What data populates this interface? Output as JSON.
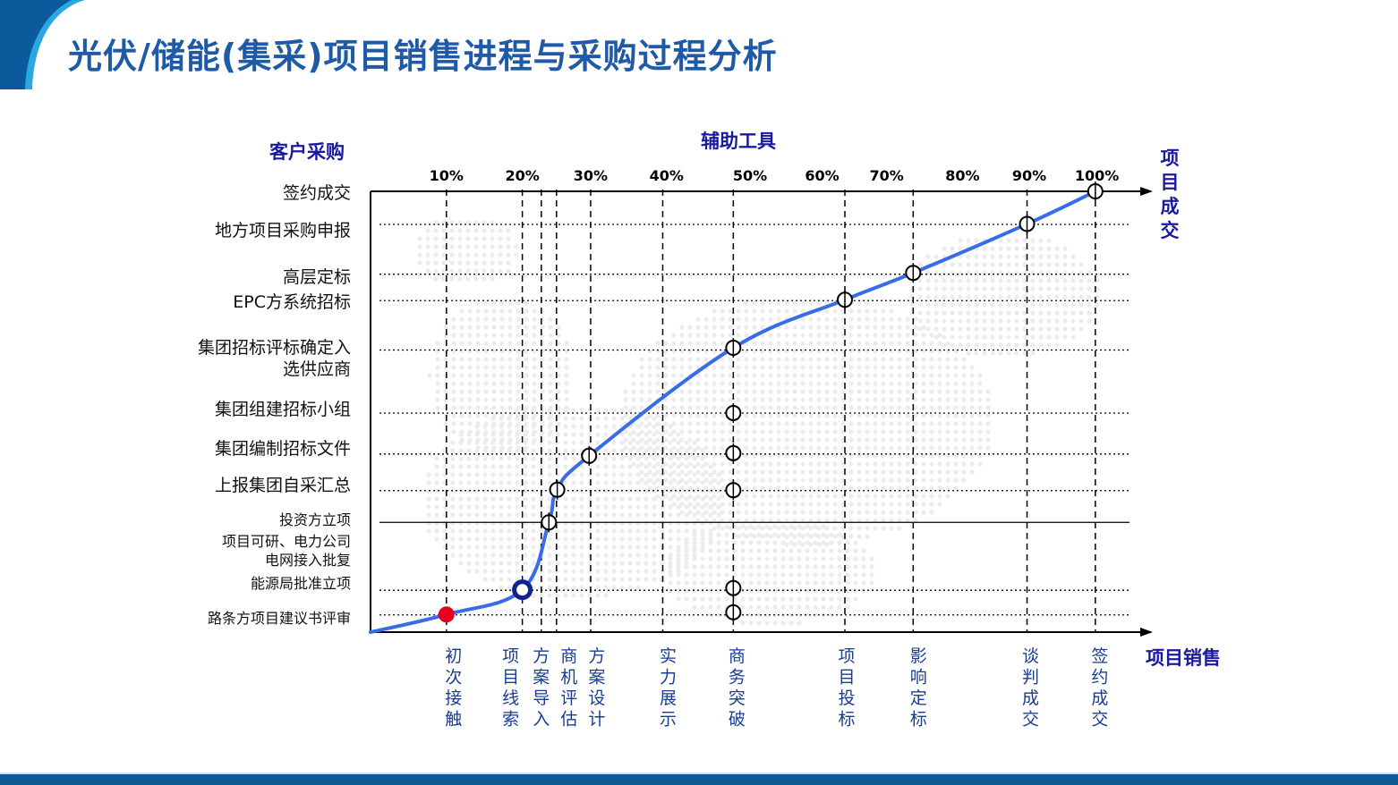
{
  "title": "光伏/储能(集采)项目销售进程与采购过程分析",
  "chart_data": {
    "type": "line",
    "title": "光伏/储能(集采)项目销售进程与采购过程分析",
    "top_axis_label": "辅助工具",
    "left_axis_label": "客户采购",
    "right_axis_label": "项目成交",
    "bottom_axis_label": "项目销售",
    "top_ticks": [
      {
        "label": "10%",
        "x": 10
      },
      {
        "label": "20%",
        "x": 20
      },
      {
        "label": "30%",
        "x": 29
      },
      {
        "label": "40%",
        "x": 39
      },
      {
        "label": "50%",
        "x": 50
      },
      {
        "label": "60%",
        "x": 59.5
      },
      {
        "label": "70%",
        "x": 68
      },
      {
        "label": "80%",
        "x": 78
      },
      {
        "label": "90%",
        "x": 86.8
      },
      {
        "label": "100%",
        "x": 95.7
      }
    ],
    "stages": [
      {
        "label": "初次接触",
        "x": 10
      },
      {
        "label": "项目线索",
        "x": 20
      },
      {
        "label": "方案导入",
        "x": 22.5
      },
      {
        "label": "商机评估",
        "x": 24.5
      },
      {
        "label": "方案设计",
        "x": 29
      },
      {
        "label": "实力展示",
        "x": 38.5
      },
      {
        "label": "商务突破",
        "x": 47.8
      },
      {
        "label": "项目投标",
        "x": 62.5
      },
      {
        "label": "影响定标",
        "x": 71.5
      },
      {
        "label": "谈判成交",
        "x": 86.5
      },
      {
        "label": "签约成交",
        "x": 95.5
      }
    ],
    "procurement_steps": [
      {
        "label": "签约成交",
        "y": 100
      },
      {
        "label": "地方项目采购申报",
        "y": 92.5
      },
      {
        "label": "高层定标",
        "y": 81.2
      },
      {
        "label": "EPC方系统招标",
        "y": 75.2
      },
      {
        "label": "集团招标评标确定入选供应商",
        "y": 64
      },
      {
        "label": "集团组建招标小组",
        "y": 49.7
      },
      {
        "label": "集团编制招标文件",
        "y": 40.4
      },
      {
        "label": "上报集团自采汇总",
        "y": 32.1
      },
      {
        "label": "投资方立项项目可研、电力公司电网接入批复",
        "y": 24.9
      },
      {
        "label": "能源局批准立项",
        "y": 9.5
      },
      {
        "label": "路条方项目建议书评审",
        "y": 3.9
      }
    ],
    "left_labels": [
      "签约成交",
      "地方项目采购申报",
      "高层定标",
      "EPC方系统招标",
      "集团招标评标确定入",
      "选供应商",
      "集团组建招标小组",
      "集团编制招标文件",
      "上报集团自采汇总",
      "投资方立项",
      "项目可研、电力公司",
      "电网接入批复",
      "能源局批准立项",
      "路条方项目建议书评审"
    ],
    "curve_points": [
      {
        "x": 0,
        "y": 0
      },
      {
        "x": 10,
        "y": 4
      },
      {
        "x": 20,
        "y": 9.6
      },
      {
        "x": 23.5,
        "y": 24.9
      },
      {
        "x": 24.6,
        "y": 32.3
      },
      {
        "x": 28.8,
        "y": 40
      },
      {
        "x": 47.8,
        "y": 64.5
      },
      {
        "x": 62.5,
        "y": 75.4
      },
      {
        "x": 71.5,
        "y": 81.5
      },
      {
        "x": 86.5,
        "y": 92.6
      },
      {
        "x": 95.5,
        "y": 100
      }
    ],
    "milestones": [
      {
        "x": 10,
        "y": 4,
        "style": "red-dot"
      },
      {
        "x": 20,
        "y": 9.6,
        "style": "blue-ring"
      },
      {
        "x": 23.5,
        "y": 24.9,
        "style": "target"
      },
      {
        "x": 24.6,
        "y": 32.3,
        "style": "target"
      },
      {
        "x": 28.8,
        "y": 40,
        "style": "target"
      },
      {
        "x": 47.8,
        "y": 64.5,
        "style": "target"
      },
      {
        "x": 62.5,
        "y": 75.4,
        "style": "target"
      },
      {
        "x": 71.5,
        "y": 81.5,
        "style": "target"
      },
      {
        "x": 86.5,
        "y": 92.6,
        "style": "target"
      },
      {
        "x": 95.5,
        "y": 100,
        "style": "target"
      },
      {
        "x": 47.8,
        "y": 49.7,
        "style": "target"
      },
      {
        "x": 47.8,
        "y": 40.6,
        "style": "target"
      },
      {
        "x": 47.8,
        "y": 32.2,
        "style": "target"
      },
      {
        "x": 47.8,
        "y": 10,
        "style": "target"
      },
      {
        "x": 47.8,
        "y": 4.5,
        "style": "target"
      }
    ],
    "xlim": [
      0,
      100
    ],
    "ylim": [
      0,
      100
    ]
  },
  "colors": {
    "title": "#1f5aa6",
    "axis_label": "#1a1aa0",
    "stage_text": "#1a3d8f",
    "curve": "#3a6ce8",
    "red_dot": "#e8001e",
    "blue_ring": "#10228c",
    "corner_dark": "#0a5a9c",
    "corner_light": "#2aa7e0"
  }
}
